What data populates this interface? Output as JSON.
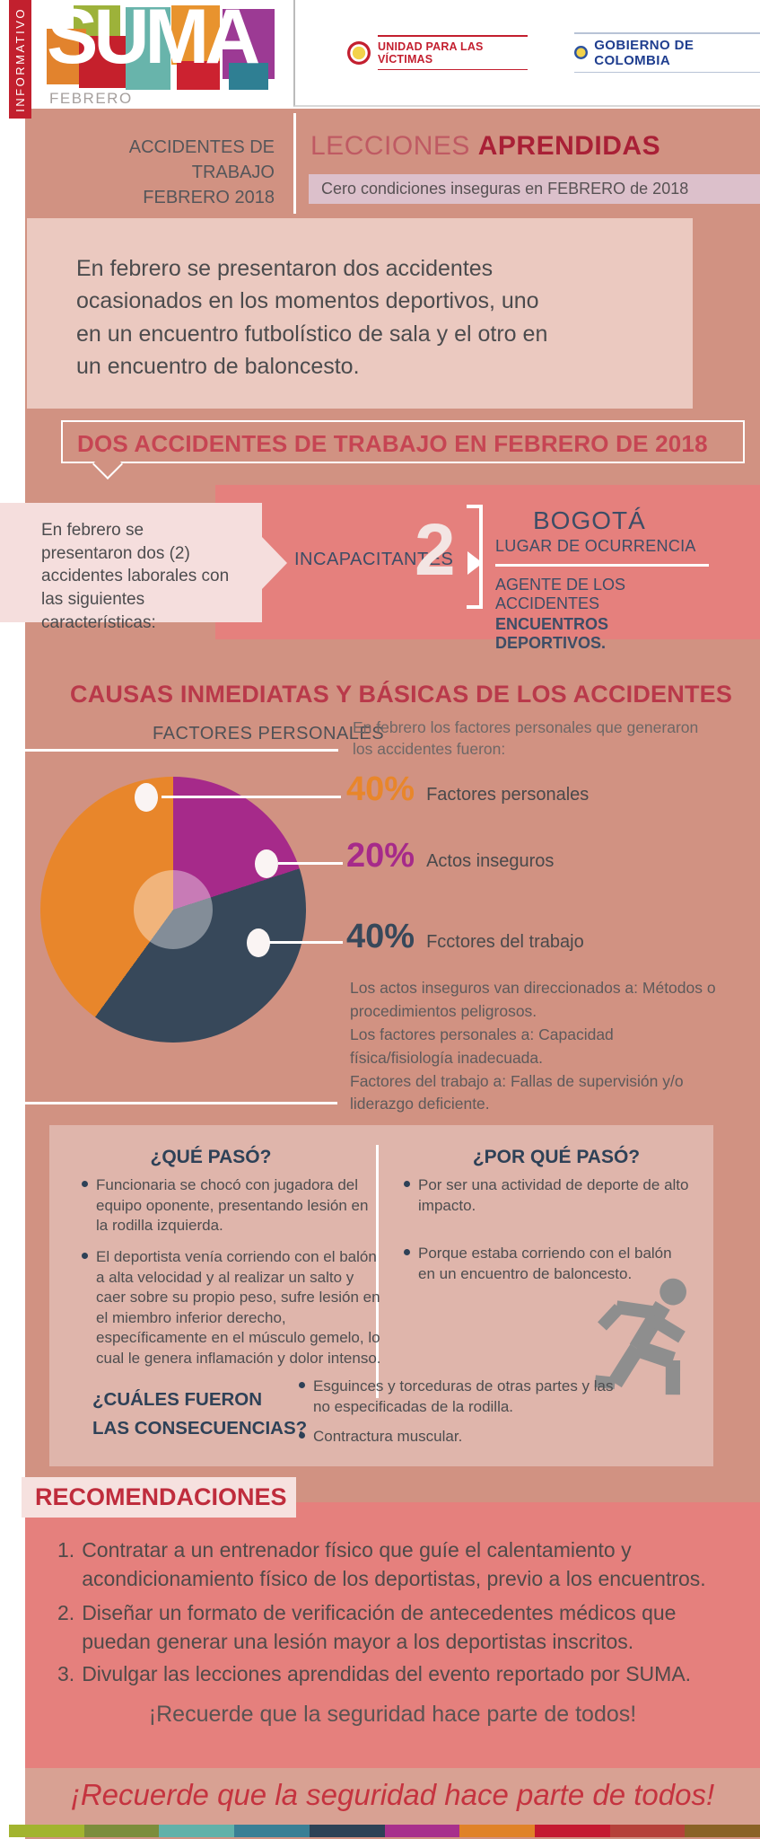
{
  "sidebar": {
    "label": "INFORMATIVO"
  },
  "logo": {
    "word": "SUMA",
    "month": "FEBRERO"
  },
  "header": {
    "unidad_logo": "UNIDAD PARA LAS VÍCTIMAS",
    "gobierno_logo": "GOBIERNO DE COLOMBIA"
  },
  "title_band": {
    "left_line1": "ACCIDENTES DE TRABAJO",
    "left_line2": "FEBRERO 2018",
    "title_light": "LECCIONES",
    "title_bold": "APRENDIDAS",
    "banner": "Cero condiciones inseguras en FEBRERO de 2018"
  },
  "intro": {
    "text": "En febrero se presentaron dos accidentes ocasionados en los momentos deportivos, uno en un encuentro futbolístico de sala y el otro en un encuentro de baloncesto."
  },
  "two_accidents": {
    "title": "DOS ACCIDENTES DE TRABAJO EN FEBRERO DE 2018",
    "callout": "En febrero se presentaron dos (2) accidentes laborales con las siguientes características:",
    "incapacitantes_label": "INCAPACITANTES",
    "count": "2",
    "city": "BOGOTÁ",
    "place_label": "LUGAR DE OCURRENCIA",
    "agent_label": "AGENTE DE LOS ACCIDENTES",
    "agent_value": "ENCUENTROS DEPORTIVOS."
  },
  "causes": {
    "title": "CAUSAS INMEDIATAS Y BÁSICAS DE LOS ACCIDENTES",
    "chart_label": "FACTORES PERSONALES",
    "intro": "En febrero los factores personales que generaron los accidentes fueron:",
    "legend": [
      {
        "pct": "40%",
        "label": "Factores personales"
      },
      {
        "pct": "20%",
        "label": "Actos inseguros"
      },
      {
        "pct": "40%",
        "label": "Fcctores del trabajo"
      }
    ],
    "detail": "Los actos inseguros van direccionados a: Métodos o procedimientos peligrosos.\nLos factores personales a: Capacidad física/fisiología inadecuada.\nFactores del trabajo a: Fallas de supervisión y/o liderazgo deficiente."
  },
  "chart_data": {
    "type": "pie",
    "title": "FACTORES PERSONALES",
    "labels": [
      "Factores personales",
      "Actos inseguros",
      "Fcctores del trabajo"
    ],
    "values": [
      40,
      20,
      40
    ],
    "colors": [
      "#e8862b",
      "#a62a8a",
      "#37485a"
    ],
    "legend_position": "right",
    "render_order_clockwise_from_top": [
      1,
      2,
      0
    ]
  },
  "what_happened": {
    "title": "¿QUÉ PASÓ?",
    "bullets": [
      "Funcionaria se chocó con jugadora del equipo oponente, presentando lesión en la rodilla izquierda.",
      "El deportista venía corriendo con el balón a alta velocidad y al realizar un salto y caer sobre su propio peso, sufre lesión en el miembro inferior derecho, específicamente en el músculo gemelo, lo cual le genera inflamación y dolor intenso."
    ]
  },
  "why_happened": {
    "title": "¿POR QUÉ PASÓ?",
    "bullets": [
      "Por ser una actividad de deporte de alto impacto.",
      "Porque estaba corriendo con el balón en un encuentro de baloncesto."
    ]
  },
  "consequences": {
    "title_line1": "¿CUÁLES FUERON",
    "title_line2": "LAS CONSECUENCIAS?",
    "bullets": [
      "Esguinces y torceduras de otras partes y las no especificadas de la rodilla.",
      "Contractura muscular."
    ]
  },
  "recommendations": {
    "title": "RECOMENDACIONES",
    "items": [
      {
        "num": "1.",
        "text": "Contratar a un entrenador físico que guíe el calentamiento y acondicionamiento físico de los deportistas, previo a los encuentros."
      },
      {
        "num": "2.",
        "text": "Diseñar un formato de verificación de antecedentes médicos que puedan generar una lesión mayor a los deportistas inscritos."
      },
      {
        "num": "3.",
        "text": "Divulgar las lecciones aprendidas del evento reportado por SUMA."
      }
    ],
    "reminder_gray": "¡Recuerde que la seguridad hace parte de todos!",
    "reminder_red": "¡Recuerde que la seguridad hace parte de todos!"
  },
  "colors": {
    "salmon_bg": "#d19282",
    "banner_pink": "#e5807d",
    "card_light": "#ebc9c0",
    "accent_red": "#bf2c3c",
    "navy": "#2e4157",
    "stripe": [
      "#a2b42f",
      "#7c8d3c",
      "#62b1a9",
      "#3a7f95",
      "#2e4256",
      "#a8308c",
      "#e08228",
      "#c41930",
      "#b5413a",
      "#8a6226"
    ]
  }
}
